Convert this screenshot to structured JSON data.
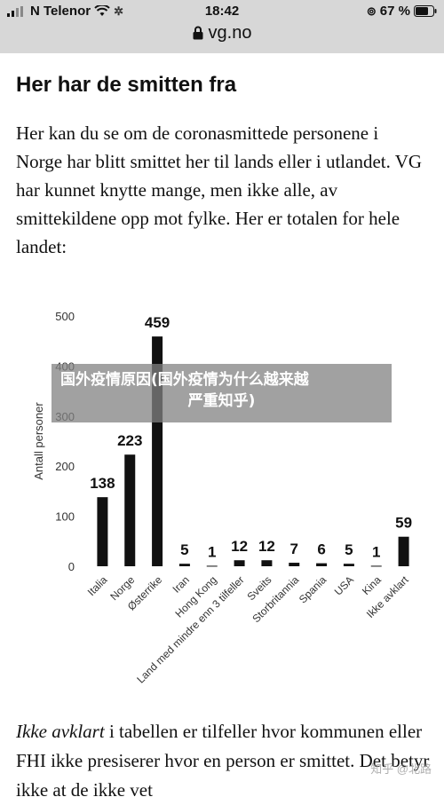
{
  "status_bar": {
    "carrier": "N Telenor",
    "time": "18:42",
    "battery": "67 %"
  },
  "url_bar": {
    "domain": "vg.no"
  },
  "article": {
    "heading": "Her har de smitten fra",
    "intro": "Her kan du se om de coronasmittede personene i Norge har blitt smittet her til lands eller i utlandet. VG har kunnet knytte mange, men ikke alle, av smittekildene opp mot fylke. Her er totalen for hele landet:",
    "outro_em": "Ikke avklart",
    "outro_rest": " i tabellen er tilfeller hvor kommunen eller FHI ikke presiserer hvor en person er smittet. Det betyr ikke at de ikke vet"
  },
  "overlay": {
    "line1": "国外疫情原因(国外疫情为什么越来越",
    "line2": "严重知乎)"
  },
  "watermark": "知乎 @北路",
  "colors": {
    "bar": "#111111",
    "status_bg": "#d7d7d7"
  },
  "chart_data": {
    "type": "bar",
    "ylabel": "Antall personer",
    "ylim": [
      0,
      500
    ],
    "yticks": [
      0,
      100,
      200,
      300,
      400,
      500
    ],
    "categories": [
      "Italia",
      "Norge",
      "Østerrike",
      "Iran",
      "Hong Kong",
      "Land med mindre enn 3 tilfeller",
      "Sveits",
      "Storbritannia",
      "Spania",
      "USA",
      "Kina",
      "Ikke avklart"
    ],
    "values": [
      138,
      223,
      459,
      5,
      1,
      12,
      12,
      7,
      6,
      5,
      1,
      59
    ],
    "grid": false
  }
}
